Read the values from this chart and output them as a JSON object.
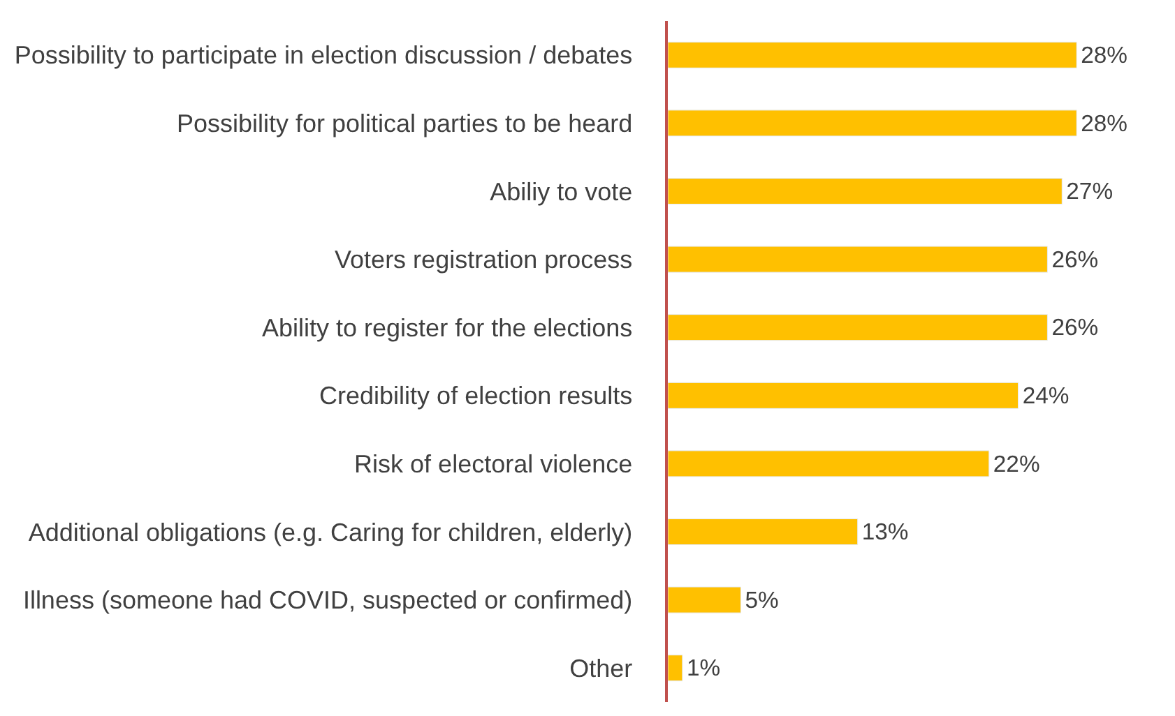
{
  "chart_data": {
    "type": "bar",
    "orientation": "horizontal",
    "categories": [
      "Possibility to participate in election discussion / debates",
      "Possibility for political parties to be heard",
      "Abiliy to vote",
      "Voters registration process",
      "Ability to register for the elections",
      "Credibility of election results",
      "Risk of electoral violence",
      "Additional obligations (e.g. Caring for children, elderly)",
      "Illness (someone had COVID, suspected or confirmed)",
      "Other"
    ],
    "values": [
      28,
      28,
      27,
      26,
      26,
      24,
      22,
      13,
      5,
      1
    ],
    "value_labels": [
      "28%",
      "28%",
      "27%",
      "26%",
      "26%",
      "24%",
      "22%",
      "13%",
      "5%",
      "1%"
    ],
    "color": "#ffc000",
    "tick_labels": "y"
  }
}
